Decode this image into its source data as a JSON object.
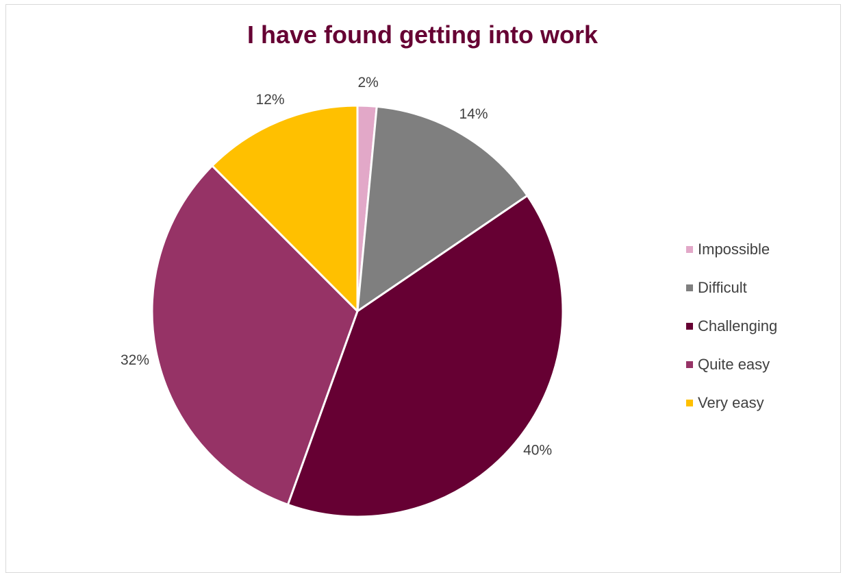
{
  "chart_data": {
    "type": "pie",
    "title": "I have found getting into work",
    "title_color": "#660033",
    "categories": [
      "Impossible",
      "Difficult",
      "Challenging",
      "Quite easy",
      "Very easy"
    ],
    "values": [
      1.5,
      14,
      40,
      32,
      12.5
    ],
    "data_labels": [
      "2%",
      "14%",
      "40%",
      "32%",
      "12%"
    ],
    "colors": [
      "#e2a8c8",
      "#7f7f7f",
      "#660033",
      "#963366",
      "#ffc000"
    ],
    "legend_position": "right",
    "start_angle": "12 o'clock, clockwise"
  }
}
